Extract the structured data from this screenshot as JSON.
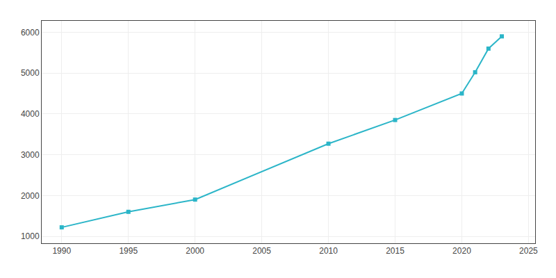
{
  "chart_data": {
    "type": "line",
    "x": [
      1990,
      1995,
      2000,
      2010,
      2015,
      2020,
      2021,
      2022,
      2023
    ],
    "values": [
      1220,
      1600,
      1900,
      3270,
      3850,
      4500,
      5020,
      5600,
      5900
    ],
    "color": "#2bb5c8",
    "marker": "square",
    "xlim": [
      1988.5,
      2025.5
    ],
    "ylim": [
      830,
      6280
    ],
    "xticks": [
      1990,
      1995,
      2000,
      2005,
      2010,
      2015,
      2020,
      2025
    ],
    "yticks": [
      1000,
      2000,
      3000,
      4000,
      5000,
      6000
    ],
    "grid": true
  }
}
